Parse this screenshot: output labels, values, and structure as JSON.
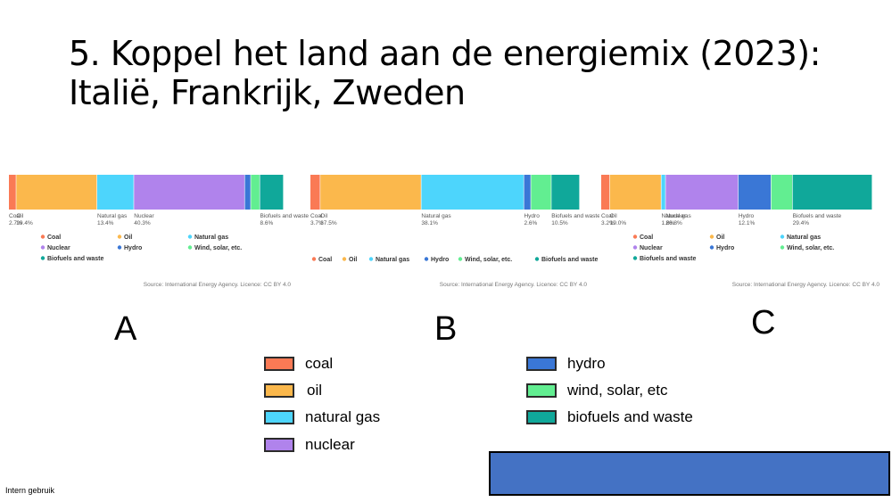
{
  "slide": {
    "title_line1": "5. Koppel het land aan de energiemix (2023):",
    "title_line2": "Italië, Frankrijk, Zweden",
    "footer": "Intern gebruik",
    "panel_letters": [
      "A",
      "B",
      "C"
    ]
  },
  "key_legend": [
    {
      "label": "coal",
      "color": "#fa7a55"
    },
    {
      "label": "oil",
      "color": "#fbb84c"
    },
    {
      "label": "natural gas",
      "color": "#4dd5fc"
    },
    {
      "label": "nuclear",
      "color": "#b083ec"
    },
    {
      "label": "hydro",
      "color": "#3a77d6"
    },
    {
      "label": "wind, solar, etc",
      "color": "#62ee91"
    },
    {
      "label": "biofuels and waste",
      "color": "#10a89a"
    }
  ],
  "colors": {
    "Coal": "#fa7a55",
    "Oil": "#fbb84c",
    "Natural gas": "#4dd5fc",
    "Nuclear": "#b083ec",
    "Hydro": "#3a77d6",
    "Wind, solar, etc.": "#62ee91",
    "Biofuels and waste": "#10a89a"
  },
  "chart_data": [
    {
      "type": "bar",
      "stacked": true,
      "orientation": "horizontal",
      "segments": [
        {
          "name": "Coal",
          "value": 2.7,
          "label": "Coal",
          "value_label": "2.7%"
        },
        {
          "name": "Oil",
          "value": 29.4,
          "label": "Oil",
          "value_label": "29.4%"
        },
        {
          "name": "Natural gas",
          "value": 13.4,
          "label": "Natural gas",
          "value_label": "13.4%"
        },
        {
          "name": "Nuclear",
          "value": 40.3,
          "label": "Nuclear",
          "value_label": "40.3%"
        },
        {
          "name": "Hydro",
          "value": 2.2,
          "label": "",
          "value_label": ""
        },
        {
          "name": "Wind, solar, etc.",
          "value": 3.3,
          "label": "",
          "value_label": ""
        },
        {
          "name": "Biofuels and waste",
          "value": 8.6,
          "label": "Biofuels and waste",
          "value_label": "8.6%"
        }
      ],
      "legend": [
        [
          "Coal",
          "Oil",
          "Natural gas"
        ],
        [
          "Nuclear",
          "Hydro",
          "Wind, solar, etc."
        ],
        [
          "Biofuels and waste"
        ]
      ],
      "source": "Source: International Energy Agency. Licence: CC BY 4.0"
    },
    {
      "type": "bar",
      "stacked": true,
      "orientation": "horizontal",
      "segments": [
        {
          "name": "Coal",
          "value": 3.7,
          "label": "Coal",
          "value_label": "3.7%"
        },
        {
          "name": "Oil",
          "value": 37.5,
          "label": "Oil",
          "value_label": "37.5%"
        },
        {
          "name": "Natural gas",
          "value": 38.1,
          "label": "Natural gas",
          "value_label": "38.1%"
        },
        {
          "name": "Hydro",
          "value": 2.6,
          "label": "Hydro",
          "value_label": "2.6%"
        },
        {
          "name": "Wind, solar, etc.",
          "value": 7.6,
          "label": "",
          "value_label": ""
        },
        {
          "name": "Biofuels and waste",
          "value": 10.5,
          "label": "Biofuels and waste",
          "value_label": "10.5%"
        }
      ],
      "legend": [
        [
          "Coal",
          "Oil",
          "Natural gas",
          "Hydro",
          "Wind, solar, etc.",
          "Biofuels and waste"
        ]
      ],
      "source": "Source: International Energy Agency. Licence: CC BY 4.0"
    },
    {
      "type": "bar",
      "stacked": true,
      "orientation": "horizontal",
      "segments": [
        {
          "name": "Coal",
          "value": 3.2,
          "label": "Coal",
          "value_label": "3.2%"
        },
        {
          "name": "Oil",
          "value": 19.0,
          "label": "Oil",
          "value_label": "19.0%"
        },
        {
          "name": "Natural gas",
          "value": 1.6,
          "label": "Natural gas",
          "value_label": "1.6%"
        },
        {
          "name": "Nuclear",
          "value": 26.8,
          "label": "Nuclear",
          "value_label": "26.8%"
        },
        {
          "name": "Hydro",
          "value": 12.1,
          "label": "Hydro",
          "value_label": "12.1%"
        },
        {
          "name": "Wind, solar, etc.",
          "value": 7.9,
          "label": "",
          "value_label": ""
        },
        {
          "name": "Biofuels and waste",
          "value": 29.4,
          "label": "Biofuels and waste",
          "value_label": "29.4%"
        }
      ],
      "legend": [
        [
          "Coal",
          "Oil",
          "Natural gas"
        ],
        [
          "Nuclear",
          "Hydro",
          "Wind, solar, etc."
        ],
        [
          "Biofuels and waste"
        ]
      ],
      "source": "Source: International Energy Agency. Licence: CC BY 4.0"
    }
  ]
}
